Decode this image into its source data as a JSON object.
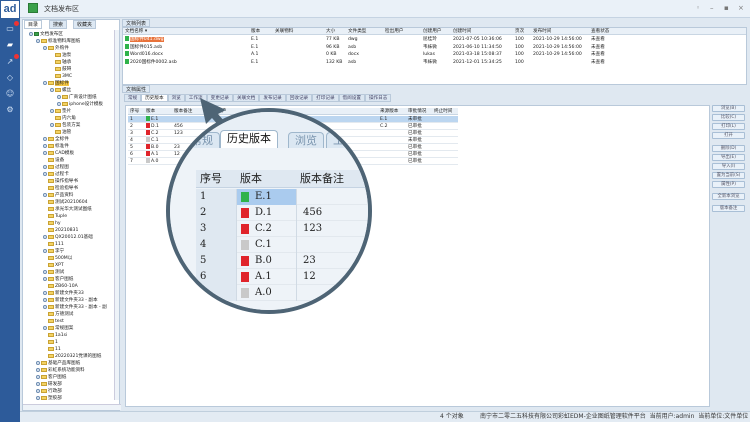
{
  "app": {
    "logo": "ad",
    "title": "文档发布区",
    "nav_icons": [
      "chat-icon",
      "folder-icon",
      "workflow-icon",
      "tag-icon",
      "user-icon",
      "settings-icon"
    ],
    "window_controls": [
      "pin",
      "minimize",
      "maximize",
      "close"
    ]
  },
  "left_tabs": [
    {
      "label": "目录"
    },
    {
      "label": "搜索"
    },
    {
      "label": "收藏夹"
    }
  ],
  "tree": [
    {
      "label": "文档发布区",
      "level": 0,
      "exp": true
    },
    {
      "label": "标准物料库图纸",
      "level": 1,
      "exp": true
    },
    {
      "label": "外购件",
      "level": 2,
      "exp": true
    },
    {
      "label": "油泵",
      "level": 3
    },
    {
      "label": "轴承",
      "level": 3
    },
    {
      "label": "鼓碍",
      "level": 3
    },
    {
      "label": "3MC",
      "level": 3
    },
    {
      "label": "国标件",
      "level": 2,
      "exp": true,
      "selected": true
    },
    {
      "label": "螺丝",
      "level": 3,
      "exp": true
    },
    {
      "label": "广商设计图纸",
      "level": 4,
      "exp": true
    },
    {
      "label": "iphone设计模板",
      "level": 4,
      "exp": true
    },
    {
      "label": "垫片",
      "level": 3,
      "exp": true
    },
    {
      "label": "内六角",
      "level": 3
    },
    {
      "label": "包装方案",
      "level": 3,
      "exp": true
    },
    {
      "label": "油管",
      "level": 3
    },
    {
      "label": "全标件",
      "level": 2,
      "exp": true
    },
    {
      "label": "标准件",
      "level": 2,
      "exp": true
    },
    {
      "label": "CAD模板",
      "level": 2,
      "exp": true
    },
    {
      "label": "设备",
      "level": 2
    },
    {
      "label": "过程图",
      "level": 2,
      "exp": true
    },
    {
      "label": "过程卡",
      "level": 2,
      "exp": true
    },
    {
      "label": "操作指导书",
      "level": 2
    },
    {
      "label": "检验指导书",
      "level": 2
    },
    {
      "label": "产品资料",
      "level": 2,
      "exp": true
    },
    {
      "label": "测试20210604",
      "level": 2
    },
    {
      "label": "承光华大测试图纸",
      "level": 2
    },
    {
      "label": "Tuple",
      "level": 2
    },
    {
      "label": "hy",
      "level": 2
    },
    {
      "label": "20210831",
      "level": 2
    },
    {
      "label": "QX20012.01基础",
      "level": 2,
      "exp": true
    },
    {
      "label": "111",
      "level": 2
    },
    {
      "label": "李宁",
      "level": 2,
      "exp": true
    },
    {
      "label": "500M以",
      "level": 2
    },
    {
      "label": "XPT",
      "level": 2
    },
    {
      "label": "测试",
      "level": 2,
      "exp": true
    },
    {
      "label": "客户图纸",
      "level": 2,
      "exp": true
    },
    {
      "label": "ZB60-10A",
      "level": 2
    },
    {
      "label": "新建文件夹33",
      "level": 2,
      "exp": true
    },
    {
      "label": "新建文件夹33 - 副本",
      "level": 2,
      "exp": true
    },
    {
      "label": "新建文件夹33 - 副本 - 副",
      "level": 2,
      "exp": true
    },
    {
      "label": "方德测试",
      "level": 2
    },
    {
      "label": "test",
      "level": 2
    },
    {
      "label": "常规图案",
      "level": 2,
      "exp": true
    },
    {
      "label": "1a1si",
      "level": 2
    },
    {
      "label": "1",
      "level": 2
    },
    {
      "label": "11",
      "level": 2
    },
    {
      "label": "20220321党课的图纸",
      "level": 2
    },
    {
      "label": "基础产品库图纸",
      "level": 1,
      "exp": true
    },
    {
      "label": "彩虹系统功能资料",
      "level": 1,
      "exp": true
    },
    {
      "label": "客户图纸",
      "level": 1,
      "exp": true
    },
    {
      "label": "研发部",
      "level": 1,
      "exp": true
    },
    {
      "label": "行政部",
      "level": 1,
      "exp": true
    },
    {
      "label": "塑胶部",
      "level": 1,
      "exp": true
    }
  ],
  "doc_list": {
    "title": "文档列表",
    "columns": [
      "文档名称 ▾",
      "版本",
      "关联物料",
      "大小",
      "文件类型",
      "检出用户",
      "创建用户",
      "创建时间",
      "页次",
      "发布时间",
      "查看状态"
    ],
    "rows": [
      [
        "国标件041.dwg",
        "E.1",
        "",
        "77 KB",
        "dwg",
        "",
        "屈桂玲",
        "2021-07-05 10:36:06",
        "100",
        "2021-10-29 14:56:00",
        "未查看"
      ],
      [
        "国标件015.asb",
        "E.1",
        "",
        "96 KB",
        "asb",
        "",
        "韦妹微",
        "2021-06-10 11:34:50",
        "100",
        "2021-10-29 14:56:00",
        "未查看"
      ],
      [
        "Word016.docx",
        "A.1",
        "",
        "0 KB",
        "docx",
        "",
        "lukas",
        "2021-03-18 15:08:37",
        "100",
        "2021-10-29 14:56:00",
        "未查看"
      ],
      [
        "2020国标件0002.asb",
        "E.1",
        "",
        "132 KB",
        "asb",
        "",
        "韦妹微",
        "2021-12-01 15:34:25",
        "100",
        "",
        "未查看"
      ]
    ]
  },
  "props": {
    "title": "文档属性",
    "tabs": [
      "常规",
      "历史版本",
      "浏览",
      "工作流",
      "变更记录",
      "关联文档",
      "发布记录",
      "回收记录",
      "打印记录",
      "借阅设置",
      "操作日志"
    ],
    "active_tab": 1,
    "columns": [
      "序号",
      "版本",
      "版本备注",
      "修改用户",
      "",
      "来源版本",
      "审批情况",
      "终止时间"
    ],
    "rows": [
      {
        "no": "1",
        "ver": "E.1",
        "note": "",
        "src": "E.1",
        "appr": "未审批",
        "icon": "green"
      },
      {
        "no": "2",
        "ver": "D.1",
        "note": "456",
        "src": "C.2",
        "appr": "已审批",
        "icon": "red"
      },
      {
        "no": "3",
        "ver": "C.2",
        "note": "123",
        "src": "",
        "appr": "已审批",
        "icon": "red"
      },
      {
        "no": "4",
        "ver": "C.1",
        "note": "",
        "src": "",
        "appr": "未审批",
        "icon": "gray"
      },
      {
        "no": "5",
        "ver": "B.0",
        "note": "23",
        "src": "",
        "appr": "已审批",
        "icon": "red"
      },
      {
        "no": "6",
        "ver": "A.1",
        "note": "12",
        "src": "",
        "appr": "已审批",
        "icon": "red"
      },
      {
        "no": "7",
        "ver": "A.0",
        "note": "",
        "src": "",
        "appr": "已审批",
        "icon": "gray"
      }
    ],
    "buttons": [
      "浏览(B)",
      "比较(C)",
      "打印(L)",
      "打开",
      "删除(D)",
      "导出(E)",
      "导入(I)",
      "置为当前(S)",
      "属性(P)",
      "全新本浏览",
      "版本备注"
    ]
  },
  "magnifier": {
    "tabs": [
      "常规",
      "历史版本",
      "浏览",
      "工"
    ],
    "columns": [
      "序号",
      "版本",
      "版本备注"
    ]
  },
  "status": {
    "count": "4 个对象",
    "info": "南宁市二零二五科技有限公司彩虹EDM-企业图纸管理软件平台  当前用户:admin  当前单位:文件单位"
  },
  "colors": {
    "nav": "#2d5b9a",
    "selected_row": "#bcd6f0",
    "highlight": "#e8723a",
    "approved_icon": "#e0242b",
    "current_icon": "#2fb24a"
  }
}
